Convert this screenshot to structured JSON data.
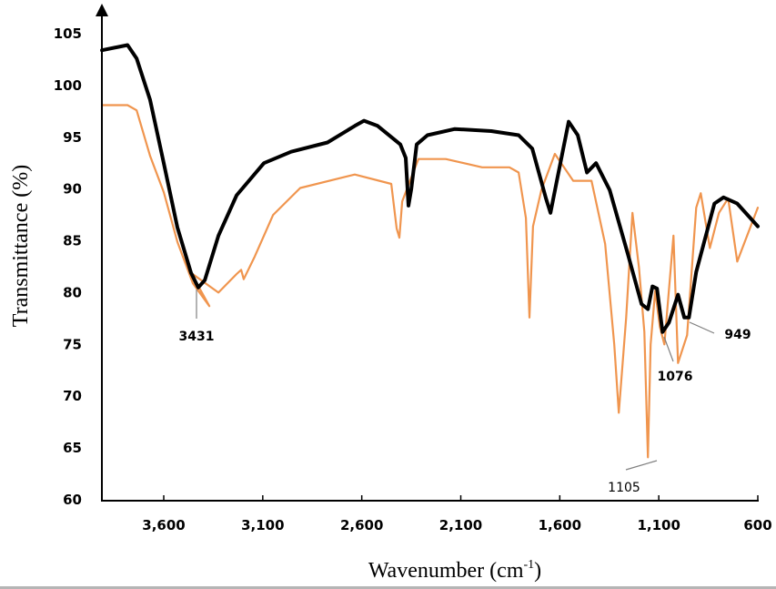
{
  "chart_data": {
    "type": "line",
    "title": "",
    "xlabel": "Wavenumber (cm-1)",
    "xlabel_main": "Wavenumber (cm",
    "xlabel_sup": "-1",
    "xlabel_close": ")",
    "ylabel": "Transmittance (%)",
    "xlim": [
      3912,
      600
    ],
    "ylim": [
      60,
      107
    ],
    "x_reversed": true,
    "grid": false,
    "legend": null,
    "x_ticks": [
      3600,
      3100,
      2600,
      2100,
      1600,
      1100,
      600
    ],
    "x_tick_labels": [
      "3,600",
      "3,100",
      "2,600",
      "2,100",
      "1,600",
      "1,100",
      "600"
    ],
    "y_ticks": [
      60,
      65,
      70,
      75,
      80,
      85,
      90,
      95,
      100,
      105
    ],
    "y_tick_labels": [
      "60",
      "65",
      "70",
      "75",
      "80",
      "85",
      "90",
      "95",
      "100",
      "105"
    ],
    "series": [
      {
        "name": "black",
        "color": "#000000",
        "points": [
          [
            3912,
            103.4
          ],
          [
            3783,
            103.9
          ],
          [
            3737,
            102.6
          ],
          [
            3669,
            98.6
          ],
          [
            3600,
            92.5
          ],
          [
            3531,
            86.3
          ],
          [
            3462,
            81.9
          ],
          [
            3426,
            80.5
          ],
          [
            3393,
            81.2
          ],
          [
            3324,
            85.5
          ],
          [
            3232,
            89.4
          ],
          [
            3094,
            92.5
          ],
          [
            2957,
            93.6
          ],
          [
            2773,
            94.5
          ],
          [
            2635,
            96.1
          ],
          [
            2589,
            96.6
          ],
          [
            2520,
            96.1
          ],
          [
            2405,
            94.3
          ],
          [
            2378,
            93.0
          ],
          [
            2364,
            88.4
          ],
          [
            2350,
            90.0
          ],
          [
            2323,
            94.3
          ],
          [
            2268,
            95.2
          ],
          [
            2130,
            95.8
          ],
          [
            1946,
            95.6
          ],
          [
            1808,
            95.2
          ],
          [
            1739,
            93.9
          ],
          [
            1670,
            89.1
          ],
          [
            1647,
            87.7
          ],
          [
            1615,
            90.8
          ],
          [
            1555,
            96.5
          ],
          [
            1509,
            95.2
          ],
          [
            1463,
            91.6
          ],
          [
            1417,
            92.5
          ],
          [
            1348,
            89.9
          ],
          [
            1256,
            83.7
          ],
          [
            1187,
            78.9
          ],
          [
            1155,
            78.4
          ],
          [
            1132,
            80.6
          ],
          [
            1109,
            80.4
          ],
          [
            1081,
            76.2
          ],
          [
            1049,
            77.1
          ],
          [
            1003,
            79.8
          ],
          [
            971,
            77.6
          ],
          [
            948,
            77.6
          ],
          [
            911,
            82.0
          ],
          [
            819,
            88.6
          ],
          [
            773,
            89.2
          ],
          [
            704,
            88.6
          ],
          [
            600,
            86.4
          ]
        ]
      },
      {
        "name": "orange",
        "color": "#F0954E",
        "points": [
          [
            3912,
            98.1
          ],
          [
            3783,
            98.1
          ],
          [
            3737,
            97.6
          ],
          [
            3669,
            93.2
          ],
          [
            3600,
            89.7
          ],
          [
            3531,
            84.9
          ],
          [
            3453,
            80.9
          ],
          [
            3370,
            78.7
          ],
          [
            3462,
            81.9
          ],
          [
            3324,
            80.0
          ],
          [
            3232,
            81.8
          ],
          [
            3209,
            82.2
          ],
          [
            3196,
            81.3
          ],
          [
            3140,
            83.5
          ],
          [
            3048,
            87.5
          ],
          [
            2911,
            90.1
          ],
          [
            2635,
            91.4
          ],
          [
            2451,
            90.5
          ],
          [
            2424,
            86.2
          ],
          [
            2410,
            85.3
          ],
          [
            2396,
            88.8
          ],
          [
            2314,
            92.9
          ],
          [
            2176,
            92.9
          ],
          [
            1992,
            92.1
          ],
          [
            1854,
            92.1
          ],
          [
            1808,
            91.6
          ],
          [
            1771,
            87.2
          ],
          [
            1753,
            77.6
          ],
          [
            1735,
            86.4
          ],
          [
            1693,
            89.9
          ],
          [
            1625,
            93.4
          ],
          [
            1532,
            90.8
          ],
          [
            1440,
            90.8
          ],
          [
            1371,
            84.7
          ],
          [
            1325,
            75.0
          ],
          [
            1302,
            68.4
          ],
          [
            1265,
            77.6
          ],
          [
            1233,
            87.7
          ],
          [
            1200,
            82.4
          ],
          [
            1173,
            76.2
          ],
          [
            1155,
            64.1
          ],
          [
            1141,
            75.0
          ],
          [
            1118,
            80.2
          ],
          [
            1095,
            76.7
          ],
          [
            1072,
            75.0
          ],
          [
            1026,
            85.5
          ],
          [
            1003,
            73.2
          ],
          [
            957,
            75.9
          ],
          [
            911,
            88.2
          ],
          [
            888,
            89.6
          ],
          [
            842,
            84.3
          ],
          [
            796,
            87.7
          ],
          [
            750,
            89.1
          ],
          [
            704,
            83.0
          ],
          [
            600,
            88.2
          ]
        ]
      }
    ],
    "annotations": [
      {
        "label": "3431",
        "x": 3431,
        "y": 80.5
      },
      {
        "label": "1105",
        "x": 1105,
        "y": 64.1
      },
      {
        "label": "1076",
        "x": 1076,
        "y": 76.2
      },
      {
        "label": "949",
        "x": 949,
        "y": 77.6
      }
    ]
  }
}
